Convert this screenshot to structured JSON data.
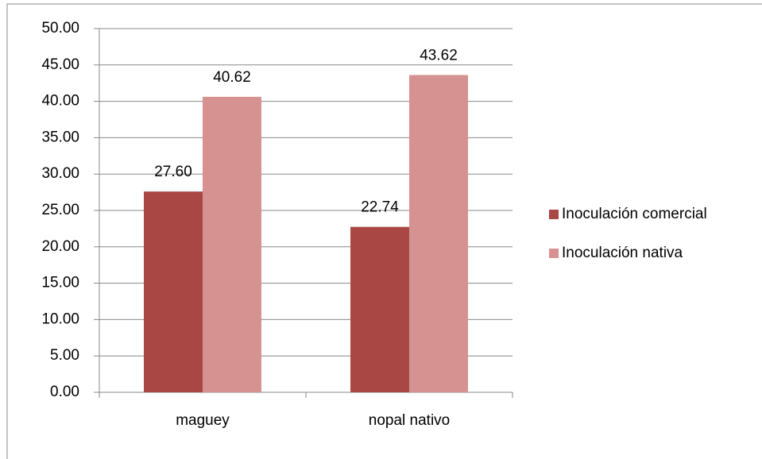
{
  "chart_data": {
    "type": "bar",
    "categories": [
      "maguey",
      "nopal nativo"
    ],
    "series": [
      {
        "name": "Inoculación comercial",
        "color": "#a94744",
        "values": [
          27.6,
          22.74
        ],
        "value_labels": [
          "27.60",
          "22.74"
        ]
      },
      {
        "name": "Inoculación nativa",
        "color": "#d59291",
        "values": [
          40.62,
          43.62
        ],
        "value_labels": [
          "40.62",
          "43.62"
        ]
      }
    ],
    "ylim": [
      0,
      50
    ],
    "yticks": [
      {
        "value": 0,
        "label": "0.00"
      },
      {
        "value": 5,
        "label": "5.00"
      },
      {
        "value": 10,
        "label": "10.00"
      },
      {
        "value": 15,
        "label": "15.00"
      },
      {
        "value": 20,
        "label": "20.00"
      },
      {
        "value": 25,
        "label": "25.00"
      },
      {
        "value": 30,
        "label": "30.00"
      },
      {
        "value": 35,
        "label": "35.00"
      },
      {
        "value": 40,
        "label": "40.00"
      },
      {
        "value": 45,
        "label": "45.00"
      },
      {
        "value": 50,
        "label": "50.00"
      }
    ],
    "grid": true,
    "legend": "right"
  }
}
